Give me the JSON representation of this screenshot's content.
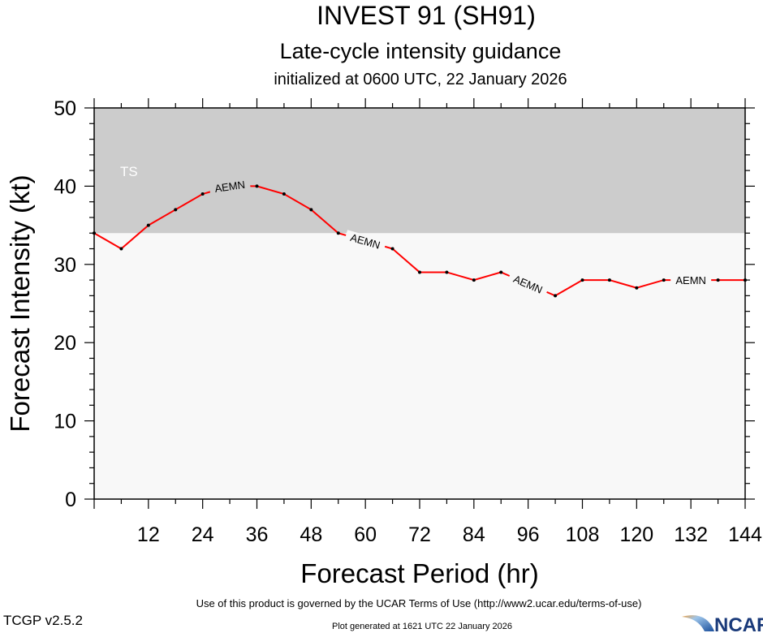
{
  "chart_data": {
    "type": "line",
    "title": "INVEST 91 (SH91)",
    "subtitle": "Late-cycle intensity guidance",
    "subtitle2": "initialized at 0600 UTC, 22 January 2026",
    "xlabel": "Forecast Period (hr)",
    "ylabel": "Forecast Intensity (kt)",
    "xlim": [
      0,
      144
    ],
    "ylim": [
      0,
      50
    ],
    "xticks": [
      12,
      24,
      36,
      48,
      60,
      72,
      84,
      96,
      108,
      120,
      132,
      144
    ],
    "yticks": [
      0,
      10,
      20,
      30,
      40,
      50
    ],
    "bands": [
      {
        "label": "TS",
        "from": 34,
        "to": 50,
        "color": "#cccccc"
      }
    ],
    "background_color": "#f8f8f8",
    "series": [
      {
        "name": "AEMN",
        "color": "#ff0000",
        "x": [
          0,
          6,
          12,
          18,
          24,
          30,
          36,
          42,
          48,
          54,
          60,
          66,
          72,
          78,
          84,
          90,
          96,
          102,
          108,
          114,
          120,
          126,
          132,
          138,
          144
        ],
        "y": [
          34,
          32,
          35,
          37,
          39,
          40,
          40,
          39,
          37,
          34,
          33,
          32,
          29,
          29,
          28,
          29,
          27.5,
          26,
          28,
          28,
          27,
          28,
          28,
          28,
          28
        ],
        "label_at_hours": [
          30,
          60,
          96,
          132
        ]
      }
    ]
  },
  "footer": {
    "terms": "Use of this product is governed by the UCAR Terms of Use (http://www2.ucar.edu/terms-of-use)",
    "version": "TCGP v2.5.2",
    "generated": "Plot generated at 1621 UTC   22 January 2026",
    "logo": "NCAR"
  }
}
